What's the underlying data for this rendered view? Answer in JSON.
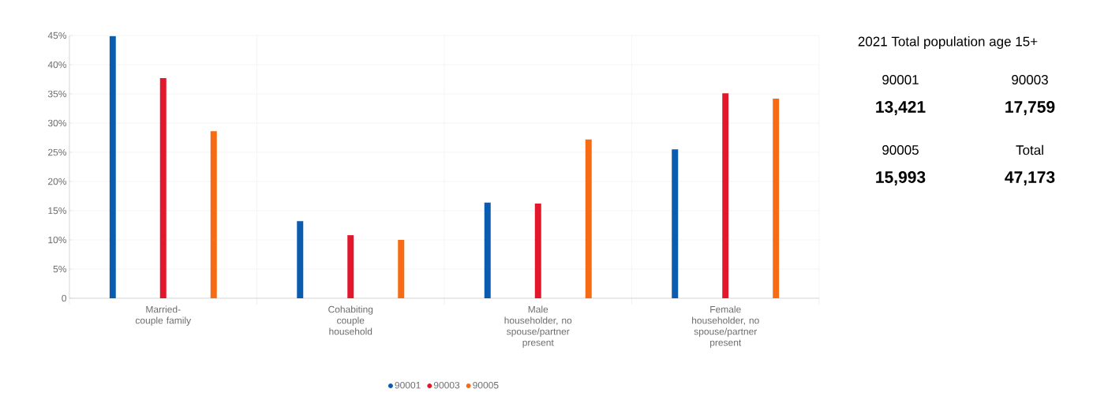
{
  "chart_data": [
    {
      "type": "bar",
      "categories": [
        "Married-couple family",
        "Cohabiting couple household",
        "Male householder, no spouse/partner present",
        "Female householder, no spouse/partner present"
      ],
      "series": [
        {
          "name": "90001",
          "color": "#0a5cb0",
          "values": [
            44.9,
            13.2,
            16.4,
            25.5
          ]
        },
        {
          "name": "90003",
          "color": "#e3172b",
          "values": [
            37.7,
            10.8,
            16.2,
            35.1
          ]
        },
        {
          "name": "90005",
          "color": "#f76b15",
          "values": [
            28.6,
            10.0,
            27.2,
            34.2
          ]
        }
      ],
      "ylim": [
        0,
        45
      ],
      "yticks": [
        0,
        {
          "value": 5,
          "label": "5%"
        },
        {
          "value": 10,
          "label": "10%"
        },
        {
          "value": 15,
          "label": "15%"
        },
        {
          "value": 20,
          "label": "20%"
        },
        {
          "value": 25,
          "label": "25%"
        },
        {
          "value": 30,
          "label": "30%"
        },
        {
          "value": 35,
          "label": "35%"
        },
        {
          "value": 40,
          "label": "40%"
        },
        {
          "value": 45,
          "label": "45%"
        }
      ],
      "grid": true,
      "legend": "bottom"
    },
    {
      "type": "other",
      "title": "2021 Total population age 15+",
      "annotations": [
        "90001",
        "13,421",
        "90003",
        "17,759",
        "90005",
        "15,993",
        "Total",
        "47,173"
      ]
    }
  ]
}
